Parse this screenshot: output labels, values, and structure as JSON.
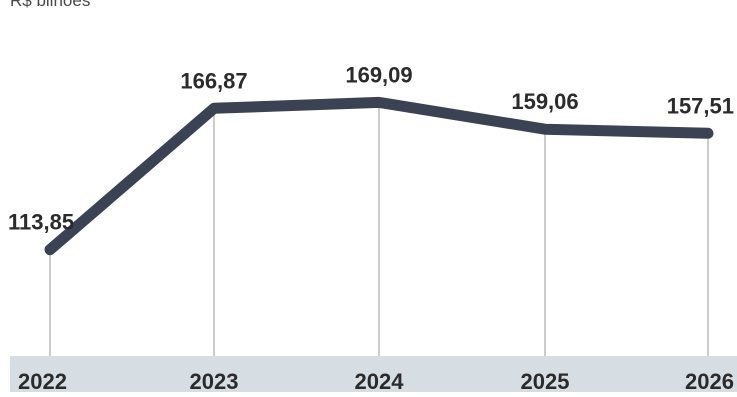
{
  "unit_label": "R$ bilhões",
  "chart_data": {
    "type": "line",
    "title": "",
    "xlabel": "",
    "ylabel": "R$ bilhões",
    "categories": [
      "2022",
      "2023",
      "2024",
      "2025",
      "2026"
    ],
    "values": [
      113.85,
      166.87,
      169.09,
      159.06,
      157.51
    ],
    "value_labels": [
      "113,85",
      "166,87",
      "169,09",
      "159,06",
      "157,51"
    ],
    "ylim": [
      95,
      185
    ],
    "grid": false,
    "legend": "none",
    "colors": {
      "line": "#3a4254",
      "drop_lines": "#9a9a9a",
      "axis_band": "#d6dde3",
      "text": "#2b2b2b"
    }
  }
}
